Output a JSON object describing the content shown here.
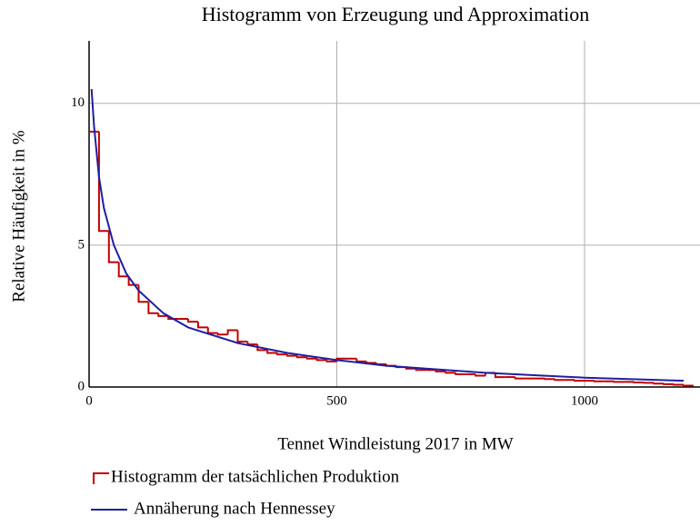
{
  "chart_data": {
    "type": "histogram",
    "title": "Histogramm von Erzeugung und Approximation",
    "x_label": "Tennet Windleistung 2017 in MW",
    "y_label": "Relative Häufigkeit in %",
    "xlim": [
      0,
      1233
    ],
    "ylim": [
      0,
      12.2
    ],
    "xticks": [
      0,
      500,
      1000
    ],
    "yticks": [
      0,
      5,
      10
    ],
    "grid": true,
    "series": [
      {
        "name": "Histogramm der tatsächlichen Produktion",
        "color": "#c00000",
        "bins": [
          0,
          20,
          40,
          60,
          80,
          100,
          120,
          140,
          160,
          180,
          200,
          220,
          240,
          260,
          280,
          300,
          320,
          340,
          360,
          380,
          400,
          420,
          440,
          460,
          480,
          500,
          520,
          540,
          560,
          580,
          600,
          620,
          640,
          660,
          680,
          700,
          720,
          740,
          760,
          780,
          800,
          820,
          840,
          860,
          880,
          900,
          920,
          940,
          960,
          980,
          1000,
          1020,
          1040,
          1060,
          1080,
          1100,
          1120,
          1140,
          1160,
          1180,
          1200,
          1220
        ],
        "values": [
          9.0,
          5.5,
          4.4,
          3.9,
          3.6,
          3.0,
          2.6,
          2.5,
          2.4,
          2.4,
          2.3,
          2.1,
          1.9,
          1.85,
          2.0,
          1.6,
          1.5,
          1.3,
          1.2,
          1.15,
          1.1,
          1.05,
          1.0,
          0.95,
          0.9,
          1.0,
          1.0,
          0.9,
          0.85,
          0.8,
          0.75,
          0.7,
          0.65,
          0.6,
          0.6,
          0.55,
          0.5,
          0.45,
          0.45,
          0.4,
          0.5,
          0.35,
          0.35,
          0.3,
          0.3,
          0.3,
          0.28,
          0.25,
          0.25,
          0.22,
          0.22,
          0.2,
          0.2,
          0.18,
          0.18,
          0.16,
          0.15,
          0.12,
          0.1,
          0.08,
          0.05
        ]
      },
      {
        "name": "Annäherung nach Hennessey",
        "color": "#1f1fa0",
        "x": [
          5,
          10,
          20,
          30,
          50,
          75,
          100,
          150,
          200,
          300,
          400,
          500,
          600,
          800,
          1000,
          1200
        ],
        "values": [
          10.5,
          9.2,
          7.4,
          6.3,
          5.0,
          4.0,
          3.4,
          2.6,
          2.1,
          1.55,
          1.2,
          0.95,
          0.75,
          0.5,
          0.33,
          0.22
        ]
      }
    ]
  }
}
